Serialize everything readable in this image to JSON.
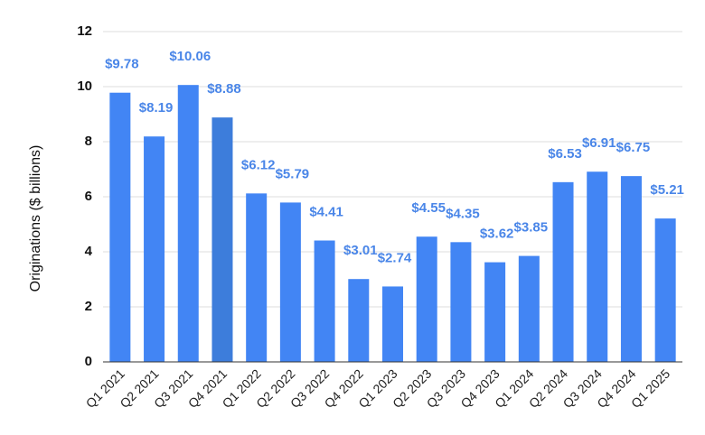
{
  "chart_data": {
    "type": "bar",
    "ylabel": "Originations ($ billions)",
    "xlabel": "",
    "title": "",
    "ylim": [
      0,
      12
    ],
    "yticks": [
      "0",
      "2",
      "4",
      "6",
      "8",
      "10",
      "12"
    ],
    "grid": true,
    "legend": "none",
    "categories": [
      "Q1 2021",
      "Q2 2021",
      "Q3 2021",
      "Q4 2021",
      "Q1 2022",
      "Q2 2022",
      "Q3 2022",
      "Q4 2022",
      "Q1 2023",
      "Q2 2023",
      "Q3 2023",
      "Q4 2023",
      "Q1 2024",
      "Q2 2024",
      "Q3 2024",
      "Q4 2024",
      "Q1 2025"
    ],
    "values": [
      9.78,
      8.19,
      10.06,
      8.88,
      6.12,
      5.79,
      4.41,
      3.01,
      2.74,
      4.55,
      4.35,
      3.62,
      3.85,
      6.53,
      6.91,
      6.75,
      5.21
    ],
    "data_labels": [
      "$9.78",
      "$8.19",
      "$10.06",
      "$8.88",
      "$6.12",
      "$5.79",
      "$4.41",
      "$3.01",
      "$2.74",
      "$4.55",
      "$4.35",
      "$3.62",
      "$3.85",
      "$6.53",
      "$6.91",
      "$6.75",
      "$5.21"
    ],
    "colors": {
      "bar": "#4285f4",
      "bar_highlight": "#3d7ddb",
      "label": "#4a86e8",
      "grid": "#dddddd",
      "axis": "#333333"
    }
  }
}
